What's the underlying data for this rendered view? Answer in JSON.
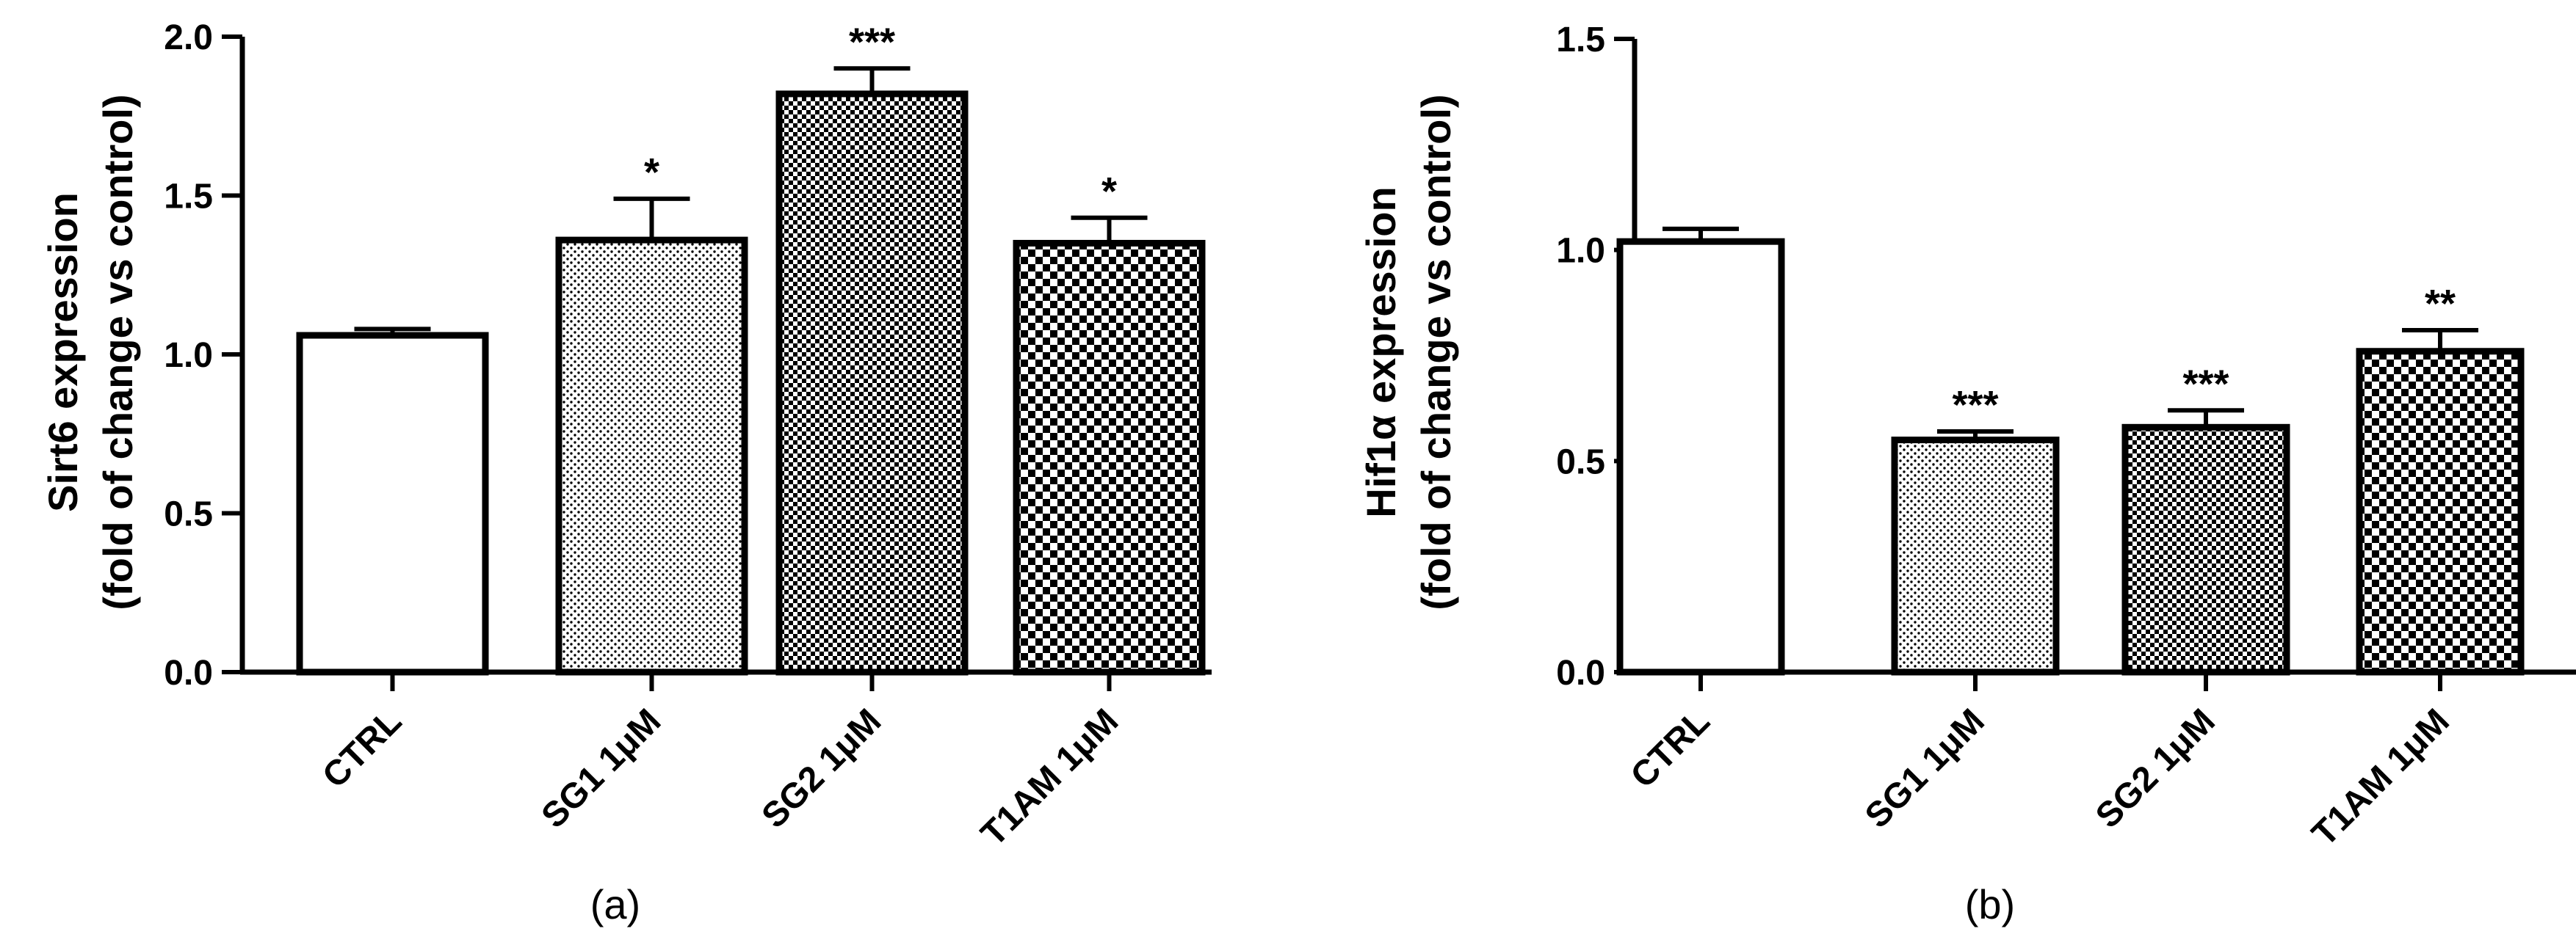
{
  "chart_data": [
    {
      "type": "bar",
      "panel_label": "(a)",
      "categories": [
        "CTRL",
        "SG1 1μM",
        "SG2 1μM",
        "T1AM 1μM"
      ],
      "values": [
        1.06,
        1.36,
        1.82,
        1.35
      ],
      "errors": [
        0.02,
        0.13,
        0.08,
        0.08
      ],
      "significance": [
        "",
        "*",
        "***",
        "*"
      ],
      "ylabel_lines": [
        "Sirt6 expression",
        "(fold of change vs control)"
      ],
      "ylim": [
        0,
        2.0
      ],
      "yticks": [
        "0.0",
        "0.5",
        "1.0",
        "1.5",
        "2.0"
      ],
      "patterns": [
        "none",
        "fine-dots",
        "fine-check",
        "coarse-check"
      ],
      "grid": false
    },
    {
      "type": "bar",
      "panel_label": "(b)",
      "categories": [
        "CTRL",
        "SG1 1μM",
        "SG2 1μM",
        "T1AM 1μM"
      ],
      "values": [
        1.02,
        0.55,
        0.58,
        0.76
      ],
      "errors": [
        0.03,
        0.02,
        0.04,
        0.05
      ],
      "significance": [
        "",
        "***",
        "***",
        "**"
      ],
      "ylabel_lines": [
        "Hif1α expression",
        "(fold of change vs control)"
      ],
      "ylim": [
        0,
        1.5
      ],
      "yticks": [
        "0.0",
        "0.5",
        "1.0",
        "1.5"
      ],
      "patterns": [
        "none",
        "fine-dots",
        "fine-check",
        "coarse-check"
      ],
      "grid": false
    }
  ]
}
